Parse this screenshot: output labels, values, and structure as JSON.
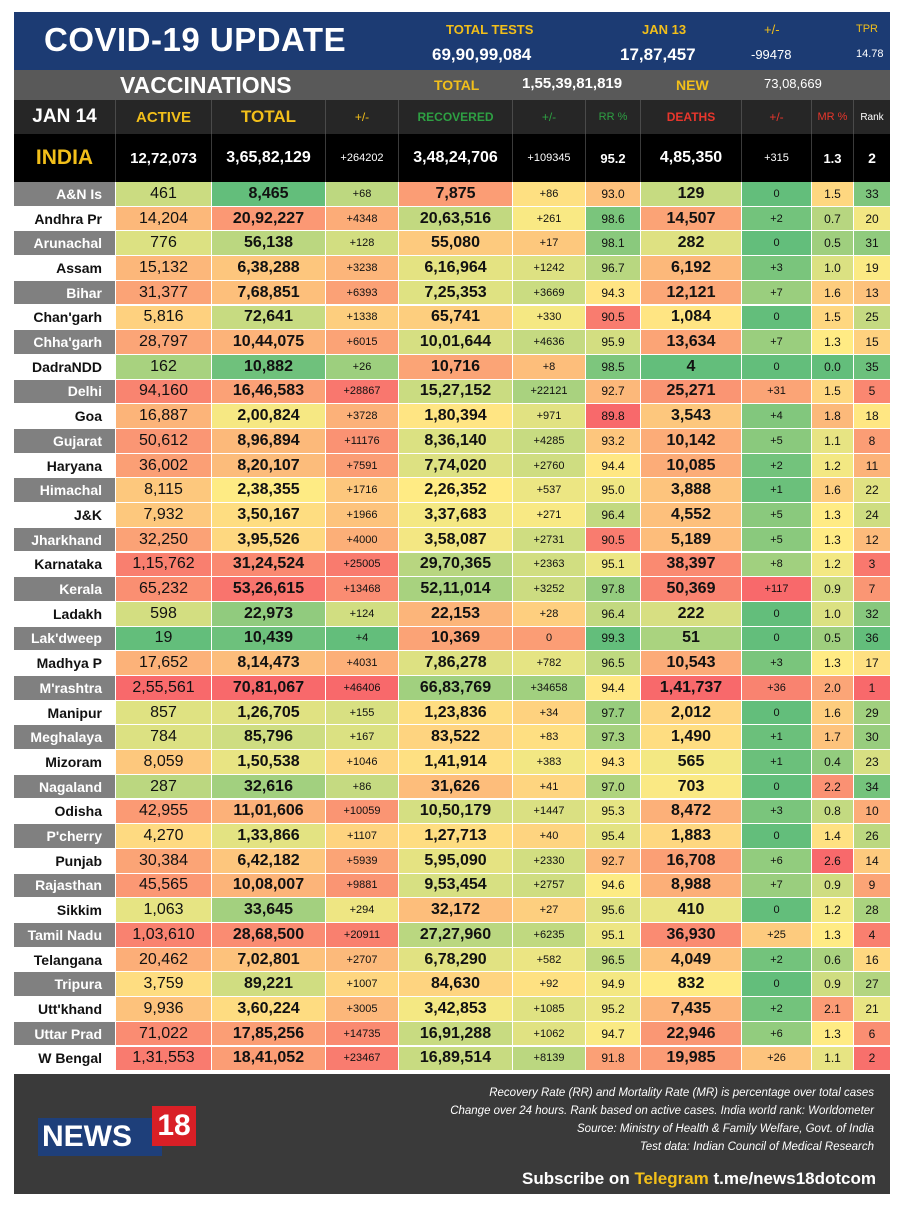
{
  "header": {
    "title": "COVID-19 UPDATE",
    "total_tests_label": "TOTAL TESTS",
    "total_tests_value": "69,90,99,084",
    "date_label": "JAN 13",
    "date_value": "17,87,457",
    "change_label": "+/-",
    "change_value": "-99478",
    "tpr_label": "TPR",
    "tpr_value": "14.78"
  },
  "vaccinations": {
    "label": "VACCINATIONS",
    "total_label": "TOTAL",
    "total_value": "1,55,39,81,819",
    "new_label": "NEW",
    "new_value": "73,08,669"
  },
  "columns": {
    "date": "JAN 14",
    "active": "ACTIVE",
    "total": "TOTAL",
    "total_change": "+/-",
    "recovered": "RECOVERED",
    "recovered_change": "+/-",
    "rr": "RR %",
    "deaths": "DEATHS",
    "deaths_change": "+/-",
    "mr": "MR %",
    "rank": "Rank"
  },
  "india": [
    "INDIA",
    "12,72,073",
    "3,65,82,129",
    "+264202",
    "3,48,24,706",
    "+109345",
    "95.2",
    "4,85,350",
    "+315",
    "1.3",
    "2"
  ],
  "colors": {
    "header_bg": "#1c3b73",
    "accent_gold": "#f2bf1a",
    "recovered_green": "#2ea043",
    "deaths_red": "#e8362c",
    "scale_green": "#63be7b",
    "scale_yellow": "#ffeb84",
    "scale_red": "#f8696b"
  },
  "rows": [
    [
      "A&N Is",
      "461",
      "8,465",
      "+68",
      "7,875",
      "+86",
      "93.0",
      "129",
      "0",
      "1.5",
      "33"
    ],
    [
      "Andhra Pr",
      "14,204",
      "20,92,227",
      "+4348",
      "20,63,516",
      "+261",
      "98.6",
      "14,507",
      "+2",
      "0.7",
      "20"
    ],
    [
      "Arunachal",
      "776",
      "56,138",
      "+128",
      "55,080",
      "+17",
      "98.1",
      "282",
      "0",
      "0.5",
      "31"
    ],
    [
      "Assam",
      "15,132",
      "6,38,288",
      "+3238",
      "6,16,964",
      "+1242",
      "96.7",
      "6,192",
      "+3",
      "1.0",
      "19"
    ],
    [
      "Bihar",
      "31,377",
      "7,68,851",
      "+6393",
      "7,25,353",
      "+3669",
      "94.3",
      "12,121",
      "+7",
      "1.6",
      "13"
    ],
    [
      "Chan'garh",
      "5,816",
      "72,641",
      "+1338",
      "65,741",
      "+330",
      "90.5",
      "1,084",
      "0",
      "1.5",
      "25"
    ],
    [
      "Chha'garh",
      "28,797",
      "10,44,075",
      "+6015",
      "10,01,644",
      "+4636",
      "95.9",
      "13,634",
      "+7",
      "1.3",
      "15"
    ],
    [
      "DadraNDD",
      "162",
      "10,882",
      "+26",
      "10,716",
      "+8",
      "98.5",
      "4",
      "0",
      "0.0",
      "35"
    ],
    [
      "Delhi",
      "94,160",
      "16,46,583",
      "+28867",
      "15,27,152",
      "+22121",
      "92.7",
      "25,271",
      "+31",
      "1.5",
      "5"
    ],
    [
      "Goa",
      "16,887",
      "2,00,824",
      "+3728",
      "1,80,394",
      "+971",
      "89.8",
      "3,543",
      "+4",
      "1.8",
      "18"
    ],
    [
      "Gujarat",
      "50,612",
      "8,96,894",
      "+11176",
      "8,36,140",
      "+4285",
      "93.2",
      "10,142",
      "+5",
      "1.1",
      "8"
    ],
    [
      "Haryana",
      "36,002",
      "8,20,107",
      "+7591",
      "7,74,020",
      "+2760",
      "94.4",
      "10,085",
      "+2",
      "1.2",
      "11"
    ],
    [
      "Himachal",
      "8,115",
      "2,38,355",
      "+1716",
      "2,26,352",
      "+537",
      "95.0",
      "3,888",
      "+1",
      "1.6",
      "22"
    ],
    [
      "J&K",
      "7,932",
      "3,50,167",
      "+1966",
      "3,37,683",
      "+271",
      "96.4",
      "4,552",
      "+5",
      "1.3",
      "24"
    ],
    [
      "Jharkhand",
      "32,250",
      "3,95,526",
      "+4000",
      "3,58,087",
      "+2731",
      "90.5",
      "5,189",
      "+5",
      "1.3",
      "12"
    ],
    [
      "Karnataka",
      "1,15,762",
      "31,24,524",
      "+25005",
      "29,70,365",
      "+2363",
      "95.1",
      "38,397",
      "+8",
      "1.2",
      "3"
    ],
    [
      "Kerala",
      "65,232",
      "53,26,615",
      "+13468",
      "52,11,014",
      "+3252",
      "97.8",
      "50,369",
      "+117",
      "0.9",
      "7"
    ],
    [
      "Ladakh",
      "598",
      "22,973",
      "+124",
      "22,153",
      "+28",
      "96.4",
      "222",
      "0",
      "1.0",
      "32"
    ],
    [
      "Lak'dweep",
      "19",
      "10,439",
      "+4",
      "10,369",
      "0",
      "99.3",
      "51",
      "0",
      "0.5",
      "36"
    ],
    [
      "Madhya P",
      "17,652",
      "8,14,473",
      "+4031",
      "7,86,278",
      "+782",
      "96.5",
      "10,543",
      "+3",
      "1.3",
      "17"
    ],
    [
      "M'rashtra",
      "2,55,561",
      "70,81,067",
      "+46406",
      "66,83,769",
      "+34658",
      "94.4",
      "1,41,737",
      "+36",
      "2.0",
      "1"
    ],
    [
      "Manipur",
      "857",
      "1,26,705",
      "+155",
      "1,23,836",
      "+34",
      "97.7",
      "2,012",
      "0",
      "1.6",
      "29"
    ],
    [
      "Meghalaya",
      "784",
      "85,796",
      "+167",
      "83,522",
      "+83",
      "97.3",
      "1,490",
      "+1",
      "1.7",
      "30"
    ],
    [
      "Mizoram",
      "8,059",
      "1,50,538",
      "+1046",
      "1,41,914",
      "+383",
      "94.3",
      "565",
      "+1",
      "0.4",
      "23"
    ],
    [
      "Nagaland",
      "287",
      "32,616",
      "+86",
      "31,626",
      "+41",
      "97.0",
      "703",
      "0",
      "2.2",
      "34"
    ],
    [
      "Odisha",
      "42,955",
      "11,01,606",
      "+10059",
      "10,50,179",
      "+1447",
      "95.3",
      "8,472",
      "+3",
      "0.8",
      "10"
    ],
    [
      "P'cherry",
      "4,270",
      "1,33,866",
      "+1107",
      "1,27,713",
      "+40",
      "95.4",
      "1,883",
      "0",
      "1.4",
      "26"
    ],
    [
      "Punjab",
      "30,384",
      "6,42,182",
      "+5939",
      "5,95,090",
      "+2330",
      "92.7",
      "16,708",
      "+6",
      "2.6",
      "14"
    ],
    [
      "Rajasthan",
      "45,565",
      "10,08,007",
      "+9881",
      "9,53,454",
      "+2757",
      "94.6",
      "8,988",
      "+7",
      "0.9",
      "9"
    ],
    [
      "Sikkim",
      "1,063",
      "33,645",
      "+294",
      "32,172",
      "+27",
      "95.6",
      "410",
      "0",
      "1.2",
      "28"
    ],
    [
      "Tamil Nadu",
      "1,03,610",
      "28,68,500",
      "+20911",
      "27,27,960",
      "+6235",
      "95.1",
      "36,930",
      "+25",
      "1.3",
      "4"
    ],
    [
      "Telangana",
      "20,462",
      "7,02,801",
      "+2707",
      "6,78,290",
      "+582",
      "96.5",
      "4,049",
      "+2",
      "0.6",
      "16"
    ],
    [
      "Tripura",
      "3,759",
      "89,221",
      "+1007",
      "84,630",
      "+92",
      "94.9",
      "832",
      "0",
      "0.9",
      "27"
    ],
    [
      "Utt'khand",
      "9,936",
      "3,60,224",
      "+3005",
      "3,42,853",
      "+1085",
      "95.2",
      "7,435",
      "+2",
      "2.1",
      "21"
    ],
    [
      "Uttar Prad",
      "71,022",
      "17,85,256",
      "+14735",
      "16,91,288",
      "+1062",
      "94.7",
      "22,946",
      "+6",
      "1.3",
      "6"
    ],
    [
      "W Bengal",
      "1,31,553",
      "18,41,052",
      "+23467",
      "16,89,514",
      "+8139",
      "91.8",
      "19,985",
      "+26",
      "1.1",
      "2"
    ]
  ],
  "footer": {
    "note1": "Recovery Rate (RR) and Mortality Rate (MR) is percentage over total cases",
    "note2": "Change over 24 hours. Rank based on active cases. India world rank: Worldometer",
    "note3": "Source: Ministry of Health & Family Welfare, Govt. of India",
    "note4": "Test data: Indian Council of Medical Research",
    "logo_text": "NEWS",
    "logo_number": "18",
    "subscribe_prefix": "Subscribe on",
    "subscribe_platform": "Telegram",
    "subscribe_link": "t.me/news18dotcom"
  }
}
